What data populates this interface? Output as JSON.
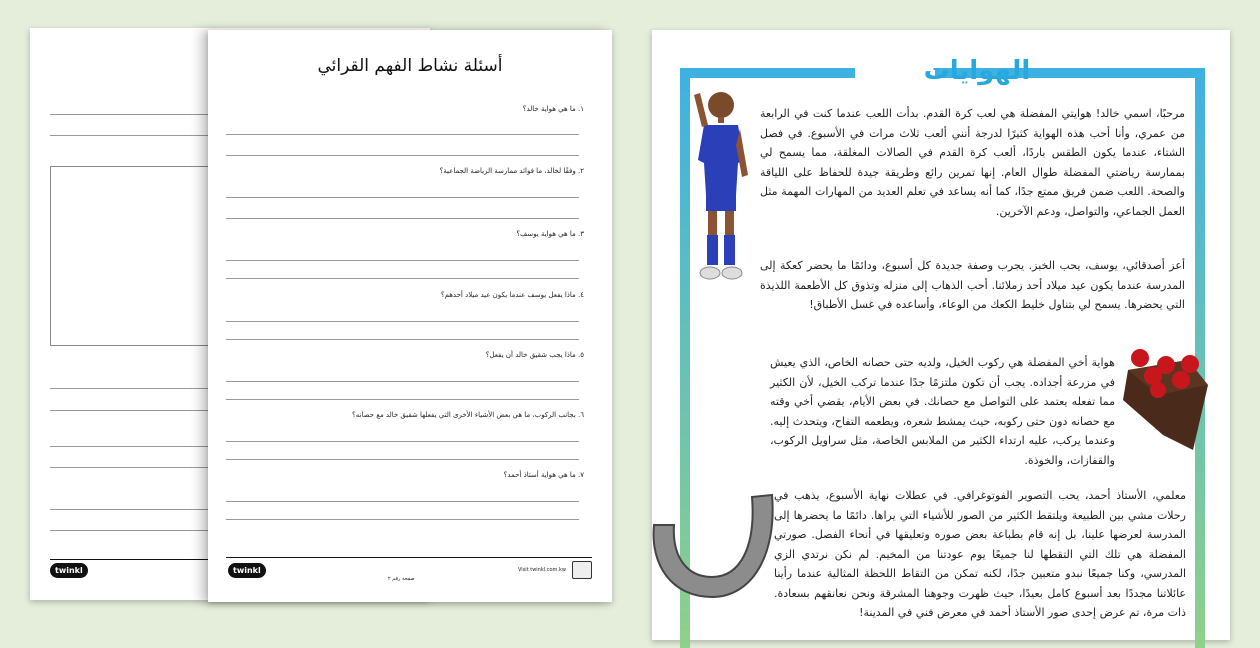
{
  "worksheet": {
    "title": "أسئلة نشاط الفهم القرائي",
    "questions": [
      "١. ما هي هواية خالد؟",
      "٢. وفقًا لخالد، ما فوائد ممارسة الرياضة الجماعية؟",
      "٣. ما هي هواية يوسف؟",
      "٤. ماذا يفعل يوسف عندما يكون عيد ميلاد أحدهم؟",
      "٥. ماذا يجب شقيق خالد أن يفعل؟",
      "٦. بجانب الركوب، ما هي بعض الأشياء الأخرى التي يفعلها شقيق خالد مع حصانه؟",
      "٧. ما هي هواية أستاذ أحمد؟"
    ],
    "footer": {
      "logo": "twinkl",
      "page_number": "صفحة رقم ٢",
      "visit": "Visit twinkl.com.kw"
    }
  },
  "back_page": {
    "logo": "twinkl"
  },
  "reading": {
    "title": "الهوايات",
    "paragraphs": [
      "مرحبًا، اسمي خالد! هوايتي المفضلة هي لعب كرة القدم. بدأت اللعب عندما كنت في الرابعة من عمري، وأنا أحب هذه الهواية كثيرًا لدرجة أنني ألعب ثلاث مرات في الأسبوع. في فصل الشتاء، عندما يكون الطقس باردًا، ألعب كرة القدم في الصالات المغلقة، مما يسمح لي بممارسة رياضتي المفضلة طوال العام. إنها تمرين رائع وطريقة جيدة للحفاظ على اللياقة والصحة. اللعب ضمن فريق ممتع جدًا، كما أنه يساعد في تعلم العديد من المهارات المهمة مثل العمل الجماعي، والتواصل، ودعم الآخرين.",
      "أعز أصدقائي، يوسف، يحب الخبز. يجرب وصفة جديدة كل أسبوع، ودائمًا ما يحضر كعكة إلى المدرسة عندما يكون عيد ميلاد أحد زملائنا. أحب الذهاب إلى منزله وتذوق كل الأطعمة اللذيذة التي يحضرها. يسمح لي بتناول خليط الكعك من الوعاء، وأساعده في غسل الأطباق!",
      "هواية أخي المفضلة هي ركوب الخيل، ولديه حتى حصانه الخاص، الذي يعيش في مزرعة أجداده. يجب أن تكون ملتزمًا جدًا عندما تركب الخيل، لأن الكثير مما تفعله يعتمد على التواصل مع حصانك. في بعض الأيام، يقضي أخي وقته مع حصانه دون حتى ركوبه، حيث يمشط شعره، ويطعمه التفاح، ويتحدث إليه. وعندما يركب، عليه ارتداء الكثير من الملابس الخاصة، مثل سراويل الركوب، والقفازات، والخوذة.",
      "معلمي، الأستاذ أحمد، يحب التصوير الفوتوغرافي. في عطلات نهاية الأسبوع، يذهب في رحلات مشي بين الطبيعة ويلتقط الكثير من الصور للأشياء التي يراها. دائمًا ما يحضرها إلى المدرسة لعرضها علينا، بل إنه قام بطباعة بعض صوره وتعليقها في أنحاء الفصل. صورتي المفضلة هي تلك التي التقطها لنا جميعًا يوم عودتنا من المخيم. لم نكن نرتدي الزي المدرسي، وكنا جميعًا نبدو متعبين جدًا، لكنه تمكن من التقاط اللحظة المثالية عندما رأينا عائلاتنا مجددًا بعد أسبوع كامل بعيدًا، حيث ظهرت وجوهنا المشرقة ونحن نعانقهم بسعادة. ذات مرة، تم عرض إحدى صور الأستاذ أحمد في معرض فني في المدينة!"
    ],
    "illustrations": [
      "boy-waving",
      "chocolate-cake-with-cherries",
      "horseshoe"
    ]
  },
  "colors": {
    "background": "#e4eedb",
    "title_blue": "#27a8df",
    "frame_top": "#3eb1e3",
    "frame_bottom": "#8fd08a"
  }
}
